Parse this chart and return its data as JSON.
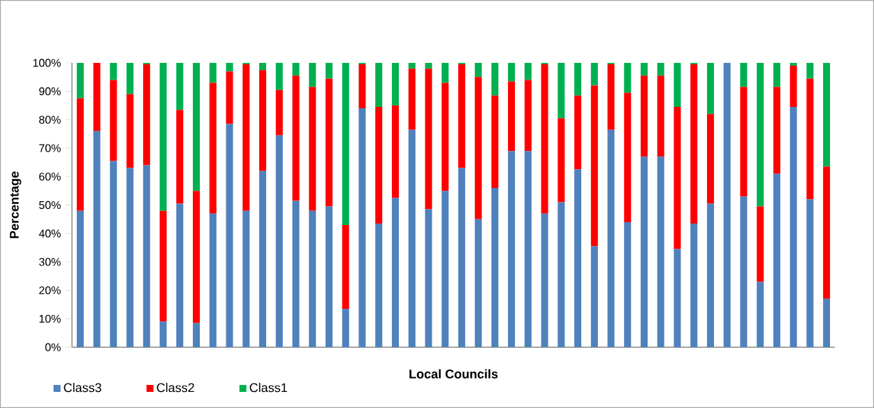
{
  "chart_data": {
    "type": "bar",
    "stacked": true,
    "xlabel": "Local Councils",
    "ylabel": "Percentage",
    "categories": [
      null,
      null,
      null,
      null,
      null,
      null,
      null,
      null,
      null,
      null,
      null,
      null,
      null,
      null,
      null,
      null,
      null,
      null,
      null,
      null,
      null,
      null,
      null,
      null,
      null,
      null,
      null,
      null,
      null,
      null,
      null,
      null,
      null,
      null,
      null,
      null,
      null,
      null,
      null,
      null,
      null,
      null,
      null,
      null,
      null,
      null
    ],
    "series": [
      {
        "name": "Class3",
        "color": "#4f81bd",
        "values": [
          48,
          76,
          65.5,
          63,
          64,
          9,
          50.5,
          8.5,
          47,
          78.5,
          48,
          62,
          74.5,
          51.5,
          48,
          49.5,
          13.5,
          84,
          43.5,
          52.5,
          76.5,
          48.5,
          55,
          63,
          45,
          56,
          69,
          69,
          47,
          51,
          62.5,
          35.5,
          76.5,
          44,
          67,
          67,
          34.5,
          43.5,
          50.5,
          100,
          53,
          23,
          61,
          84.5,
          52,
          17
        ]
      },
      {
        "name": "Class2",
        "color": "#ff0000",
        "values": [
          39.5,
          24,
          28.5,
          26,
          35.5,
          39,
          33,
          46.5,
          46,
          18.5,
          51.5,
          35.5,
          16,
          44,
          43.5,
          45,
          29.5,
          15.5,
          41,
          32.5,
          21.5,
          49.5,
          38,
          36.5,
          50,
          32.5,
          24.5,
          25,
          52.5,
          29.5,
          26,
          56.5,
          23,
          45.5,
          28.5,
          28.5,
          50,
          56,
          31.5,
          0,
          38.5,
          26.5,
          30.5,
          14.5,
          42.5,
          46.5
        ]
      },
      {
        "name": "Class1",
        "color": "#00b050",
        "values": [
          12.5,
          0,
          6,
          11,
          0.5,
          52,
          16.5,
          45,
          7,
          3,
          0.5,
          2.5,
          9.5,
          4.5,
          8.5,
          5.5,
          57,
          0.5,
          15.5,
          15,
          2,
          2,
          7,
          0.5,
          5,
          11.5,
          6.5,
          6,
          0.5,
          19.5,
          11.5,
          8,
          0.5,
          10.5,
          4.5,
          4.5,
          15.5,
          0.5,
          18,
          0,
          8.5,
          50.5,
          8.5,
          1,
          5.5,
          36.5
        ]
      }
    ],
    "ylim": [
      0,
      100
    ],
    "yticks": [
      {
        "value": 0,
        "label": "0%"
      },
      {
        "value": 10,
        "label": "10%"
      },
      {
        "value": 20,
        "label": "20%"
      },
      {
        "value": 30,
        "label": "30%"
      },
      {
        "value": 40,
        "label": "40%"
      },
      {
        "value": 50,
        "label": "50%"
      },
      {
        "value": 60,
        "label": "60%"
      },
      {
        "value": 70,
        "label": "70%"
      },
      {
        "value": 80,
        "label": "80%"
      },
      {
        "value": 90,
        "label": "90%"
      },
      {
        "value": 100,
        "label": "100%"
      }
    ],
    "grid": false,
    "legend": "bottom"
  }
}
